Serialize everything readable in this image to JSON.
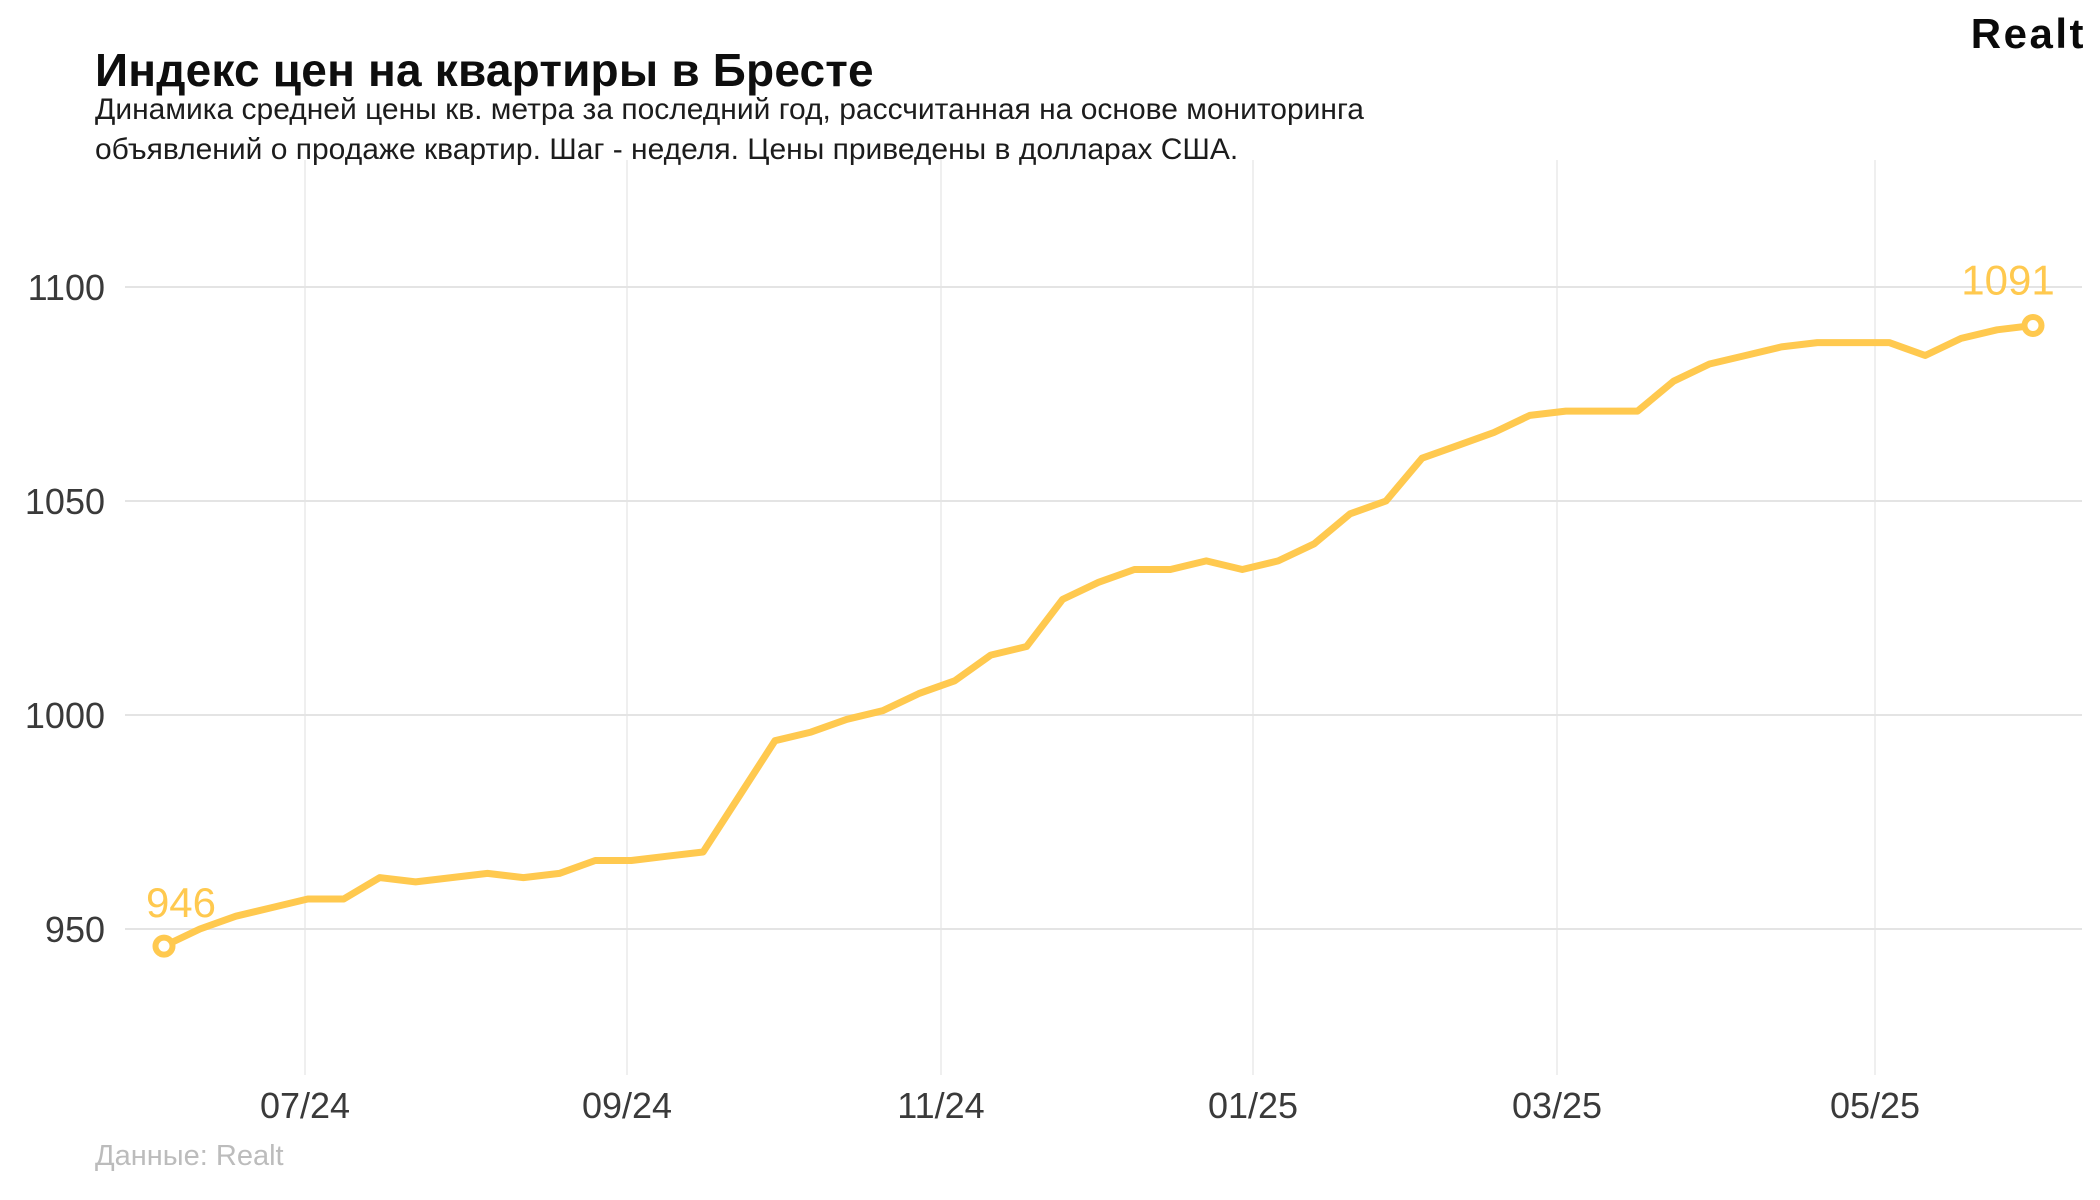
{
  "header": {
    "title": "Индекс цен на квартиры в Бресте",
    "subtitle": "Динамика средней цены кв. метра за последний год, рассчитанная на основе мониторинга объявлений о продаже квартир. Шаг - неделя. Цены приведены в долларах США.",
    "logo": "Realt"
  },
  "footer": {
    "source": "Данные: Realt"
  },
  "chart_data": {
    "type": "line",
    "title": "Индекс цен на квартиры в Бресте",
    "x_step": "week",
    "x_tick_labels": [
      "07/24",
      "09/24",
      "11/24",
      "01/25",
      "03/25",
      "05/25"
    ],
    "y_ticks": [
      950,
      1000,
      1050,
      1100
    ],
    "ylim": [
      916,
      1128
    ],
    "grid": true,
    "legend": false,
    "currency": "USD",
    "values": [
      946,
      950,
      953,
      955,
      957,
      957,
      962,
      961,
      962,
      963,
      962,
      963,
      966,
      966,
      967,
      968,
      981,
      994,
      996,
      999,
      1001,
      1005,
      1008,
      1014,
      1016,
      1027,
      1031,
      1034,
      1034,
      1036,
      1034,
      1036,
      1040,
      1047,
      1050,
      1060,
      1063,
      1066,
      1070,
      1071,
      1071,
      1071,
      1078,
      1082,
      1084,
      1086,
      1087,
      1087,
      1087,
      1084,
      1088,
      1090,
      1091
    ],
    "first_point_label": "946",
    "last_point_label": "1091",
    "line_color": "#FFC94F"
  }
}
